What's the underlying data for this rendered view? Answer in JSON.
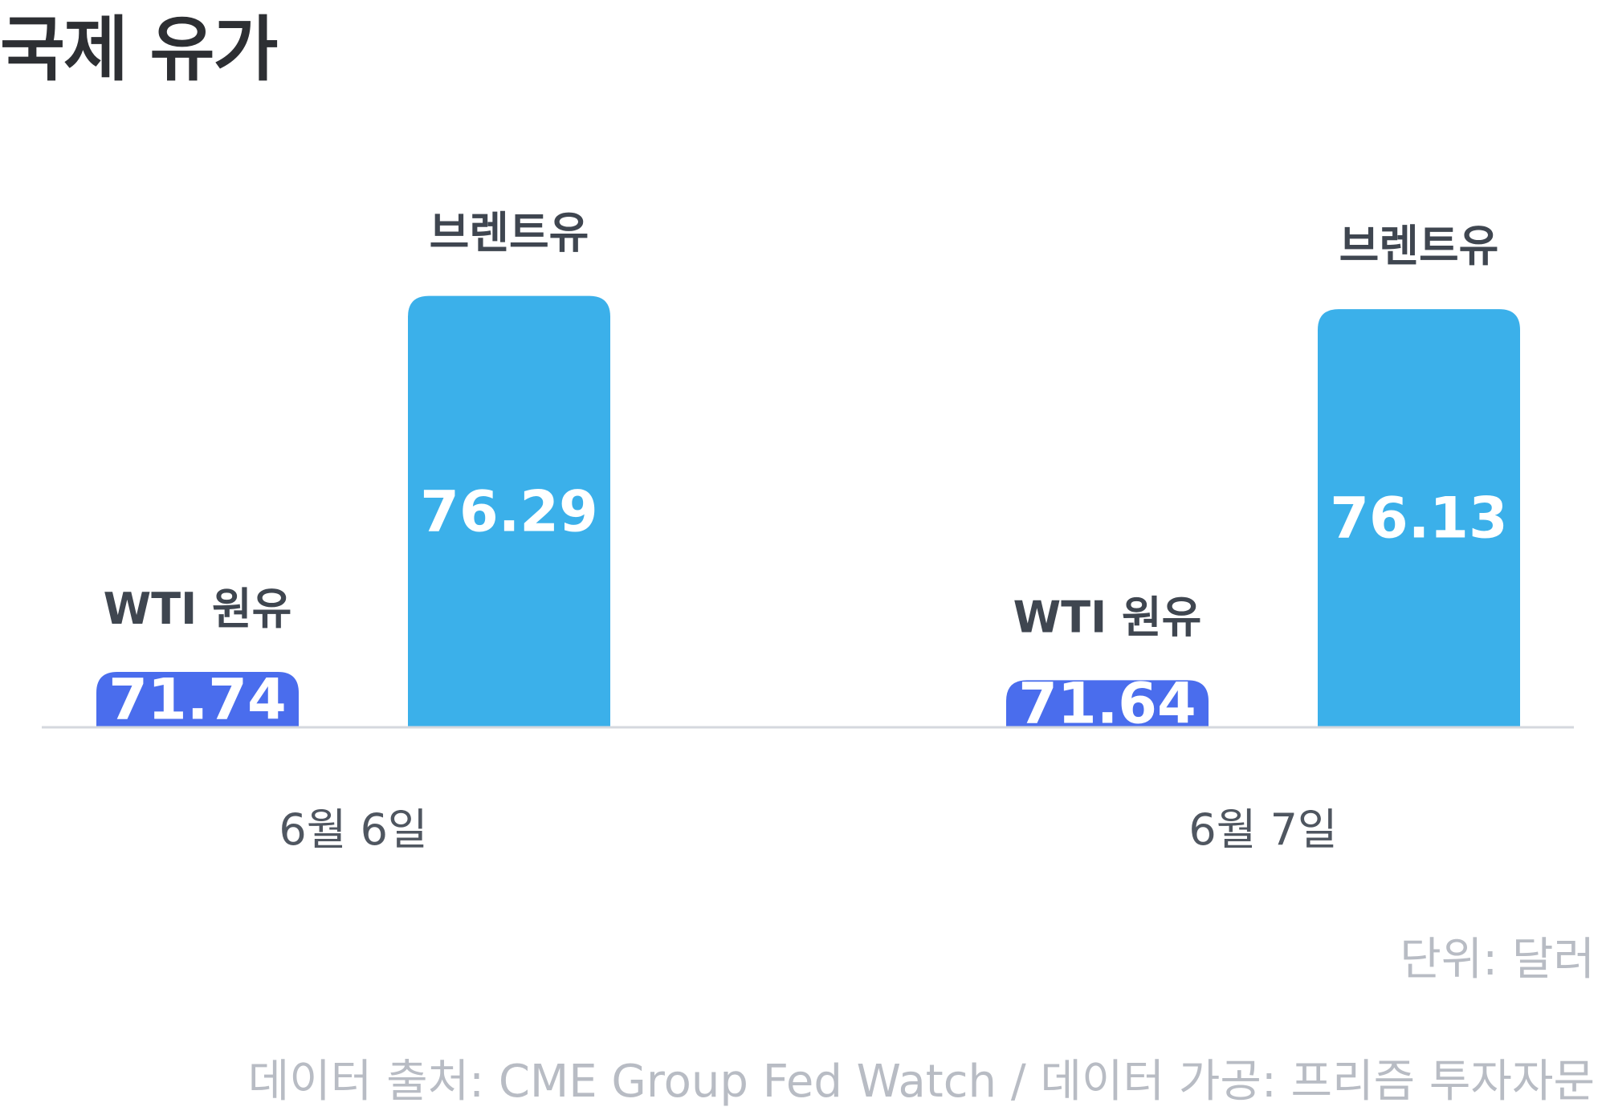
{
  "header": {
    "title": "국제 유가"
  },
  "footer": {
    "unit": "단위: 달러",
    "source": "데이터 출처: CME Group Fed Watch / 데이터 가공: 프리즘 투자자문"
  },
  "colors": {
    "wti": "#4a6ded",
    "brent": "#3bb0ea",
    "baseline": "#d5d8de"
  },
  "chart_data": {
    "type": "bar",
    "categories": [
      "6월 6일",
      "6월 7일"
    ],
    "series": [
      {
        "name": "WTI 원유",
        "values": [
          71.74,
          71.64
        ]
      },
      {
        "name": "브렌트유",
        "values": [
          76.29,
          76.13
        ]
      }
    ],
    "show_value_labels": true,
    "grid": false,
    "legend": "none"
  }
}
